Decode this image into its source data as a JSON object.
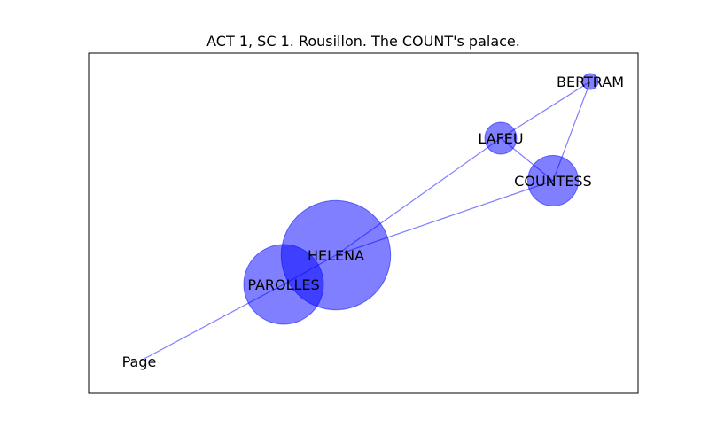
{
  "title": "ACT 1, SC 1. Rousillon. The COUNT's palace.",
  "colors": {
    "node_fill": "#0000ff",
    "edge": "#0000ff",
    "frame": "#000000",
    "background": "#ffffff"
  },
  "nodes": [
    {
      "id": "BERTRAM",
      "label": "BERTRAM",
      "weight": 1
    },
    {
      "id": "LAFEU",
      "label": "LAFEU",
      "weight": 4
    },
    {
      "id": "COUNTESS",
      "label": "COUNTESS",
      "weight": 10
    },
    {
      "id": "HELENA",
      "label": "HELENA",
      "weight": 47
    },
    {
      "id": "PAROLLES",
      "label": "PAROLLES",
      "weight": 25
    },
    {
      "id": "Page",
      "label": "Page",
      "weight": 0
    }
  ],
  "edges": [
    {
      "source": "BERTRAM",
      "target": "LAFEU"
    },
    {
      "source": "BERTRAM",
      "target": "COUNTESS"
    },
    {
      "source": "LAFEU",
      "target": "COUNTESS"
    },
    {
      "source": "LAFEU",
      "target": "HELENA"
    },
    {
      "source": "COUNTESS",
      "target": "HELENA"
    },
    {
      "source": "HELENA",
      "target": "PAROLLES"
    },
    {
      "source": "PAROLLES",
      "target": "Page"
    }
  ]
}
